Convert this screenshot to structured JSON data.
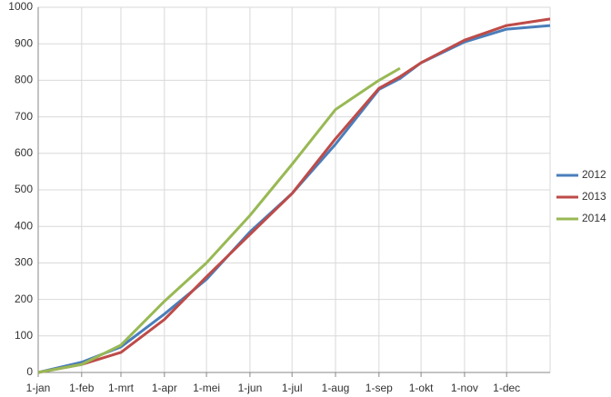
{
  "chart_data": {
    "type": "line",
    "x": [
      0,
      31,
      59,
      90,
      120,
      151,
      181,
      212,
      243,
      258,
      273,
      304,
      334,
      365
    ],
    "series": [
      {
        "name": "2012",
        "color": "#4a7ebb",
        "values": [
          0,
          28,
          70,
          160,
          255,
          385,
          490,
          625,
          775,
          805,
          848,
          905,
          940,
          950
        ]
      },
      {
        "name": "2013",
        "color": "#be4b48",
        "values": [
          0,
          22,
          55,
          145,
          262,
          378,
          490,
          640,
          778,
          810,
          848,
          910,
          950,
          968
        ]
      },
      {
        "name": "2014",
        "color": "#98b954",
        "values": [
          0,
          22,
          75,
          195,
          300,
          430,
          570,
          720,
          800,
          833,
          null,
          null,
          null,
          null
        ]
      }
    ],
    "xlim": [
      0,
      365
    ],
    "xticks": [
      {
        "value": 0,
        "label": "1-jan"
      },
      {
        "value": 31,
        "label": "1-feb"
      },
      {
        "value": 59,
        "label": "1-mrt"
      },
      {
        "value": 90,
        "label": "1-apr"
      },
      {
        "value": 120,
        "label": "1-mei"
      },
      {
        "value": 151,
        "label": "1-jun"
      },
      {
        "value": 181,
        "label": "1-jul"
      },
      {
        "value": 212,
        "label": "1-aug"
      },
      {
        "value": 243,
        "label": "1-sep"
      },
      {
        "value": 273,
        "label": "1-okt"
      },
      {
        "value": 304,
        "label": "1-nov"
      },
      {
        "value": 334,
        "label": "1-dec"
      }
    ],
    "ylim": [
      0,
      1000
    ],
    "yticks": [
      0,
      100,
      200,
      300,
      400,
      500,
      600,
      700,
      800,
      900,
      1000
    ],
    "grid": true,
    "legend": "right"
  }
}
